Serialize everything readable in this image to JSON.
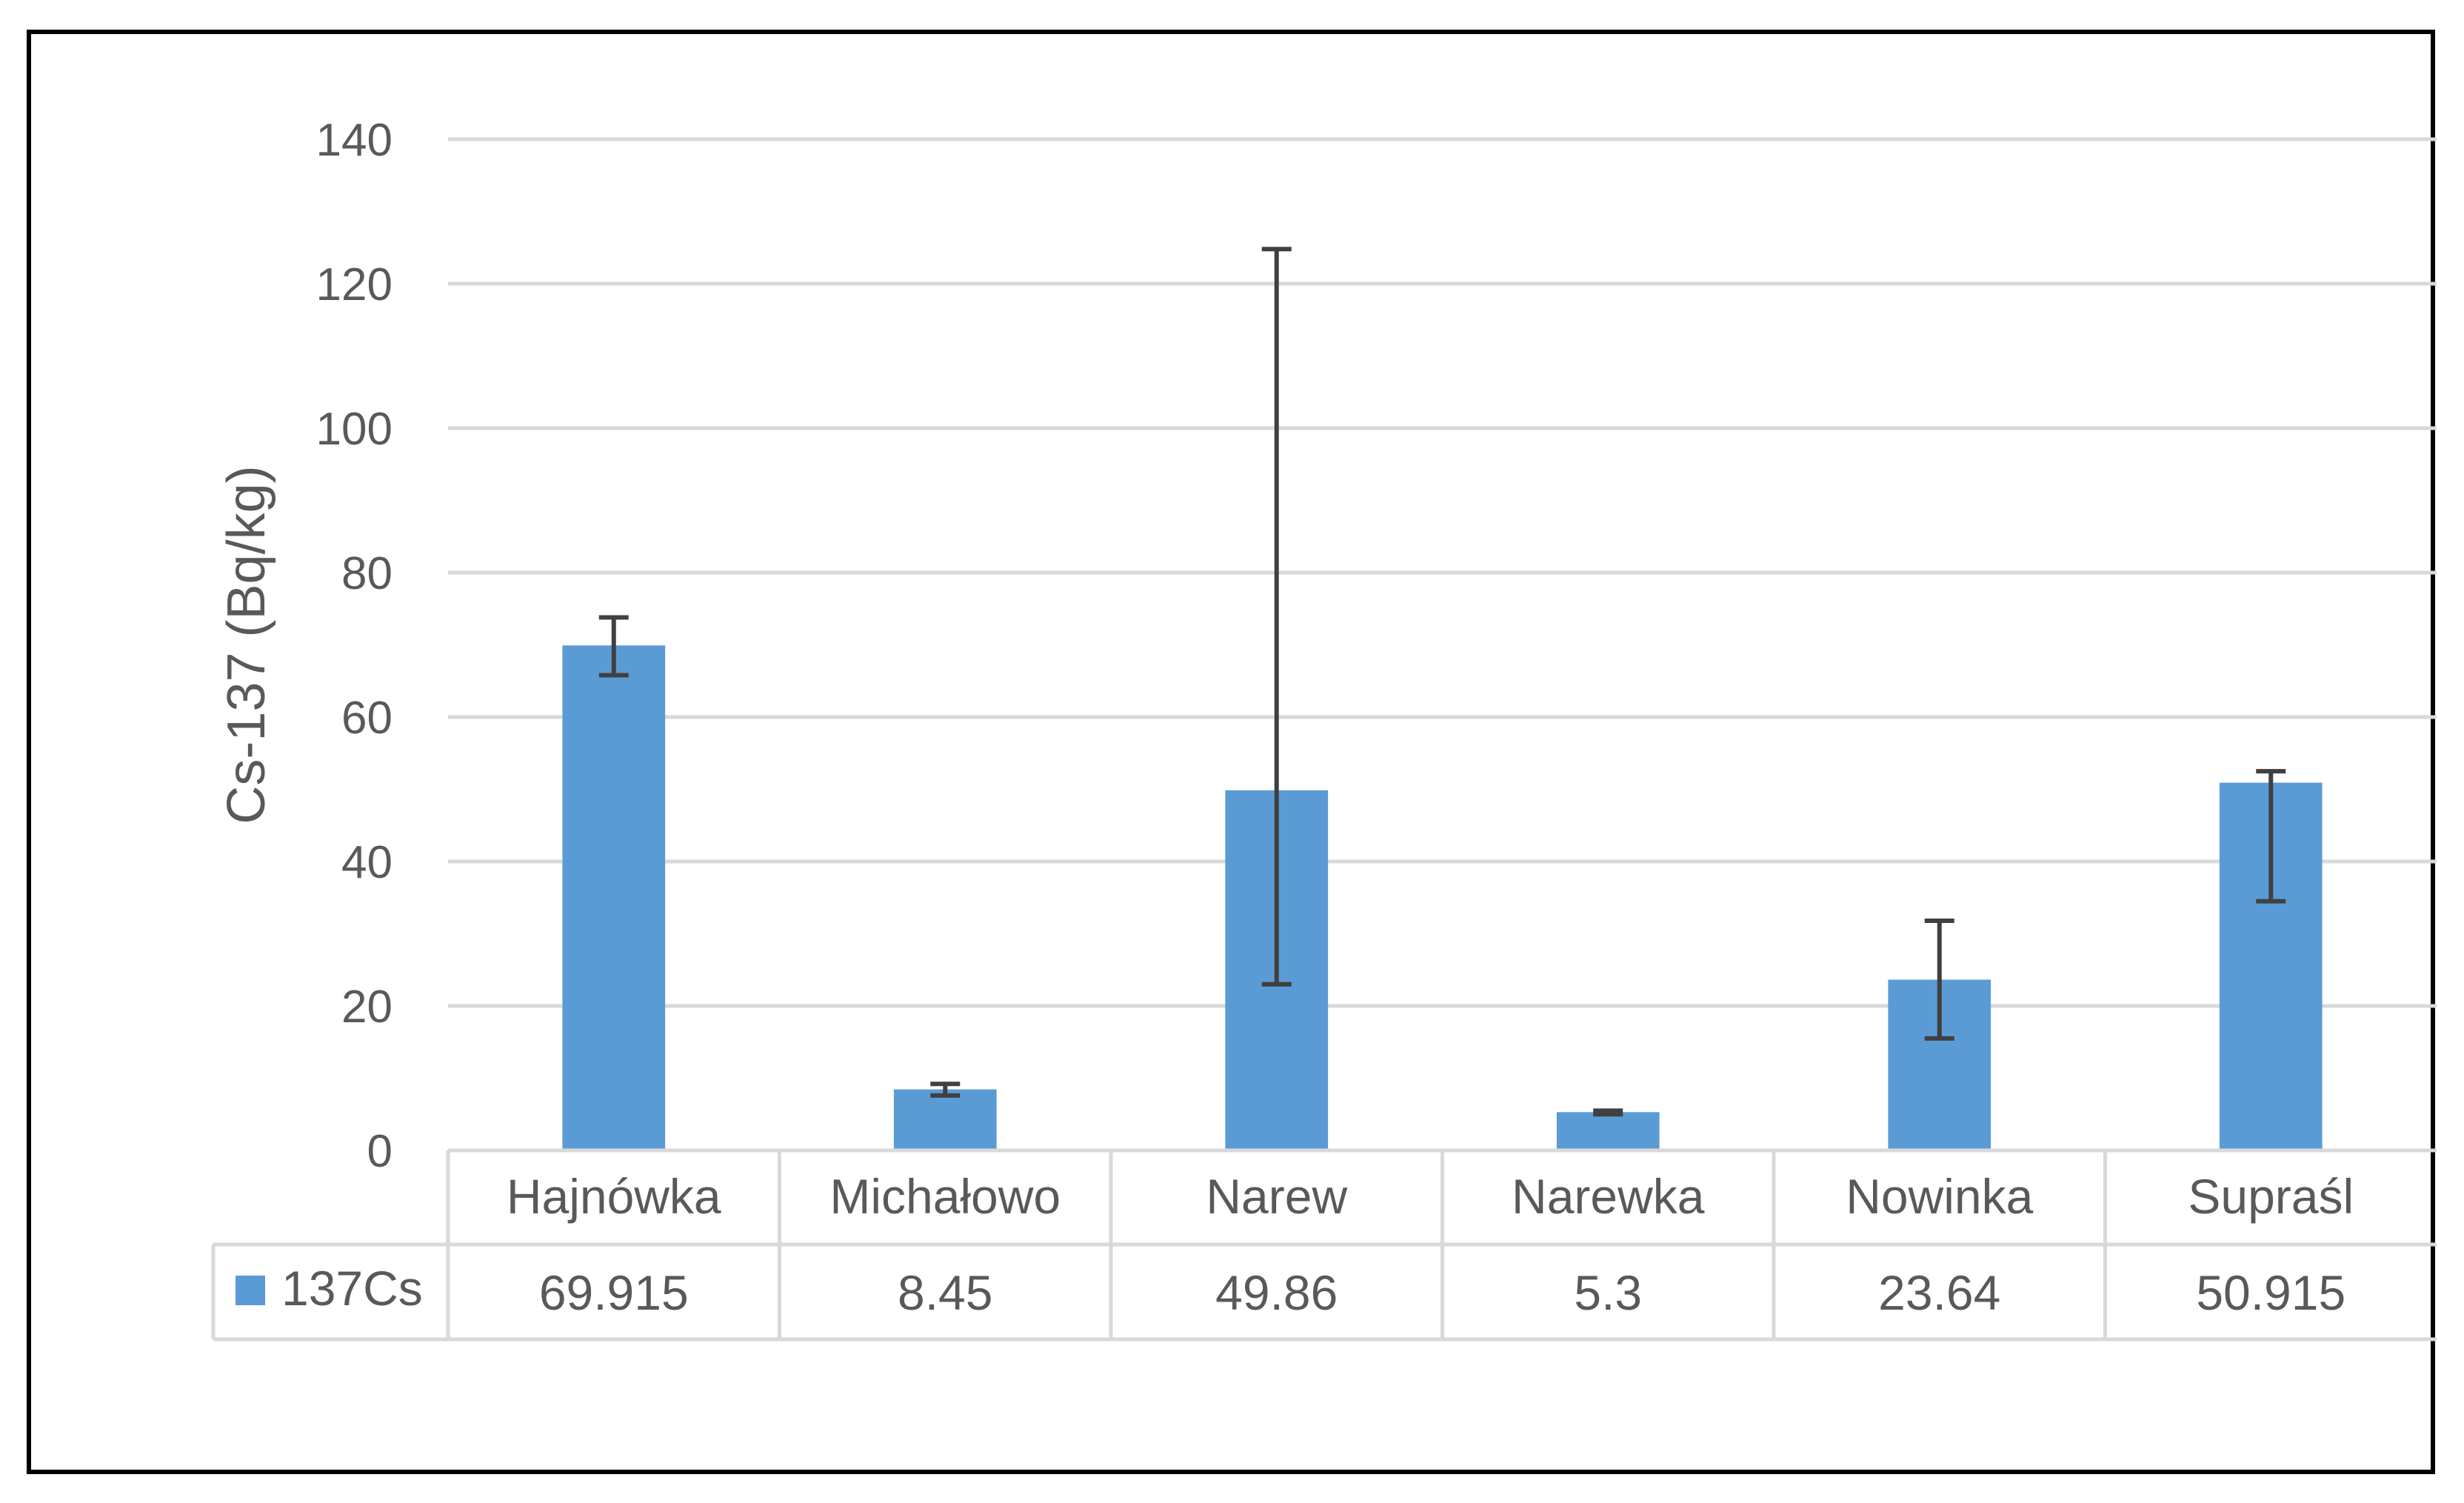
{
  "chart_data": {
    "type": "bar",
    "categories": [
      "Hajnówka",
      "Michałowo",
      "Narew",
      "Narewka",
      "Nowinka",
      "Supraśl"
    ],
    "series": [
      {
        "name": "137Cs",
        "values": [
          69.915,
          8.45,
          49.86,
          5.3,
          23.64,
          50.915
        ],
        "error_low": [
          65.8,
          7.6,
          23.0,
          5.0,
          15.5,
          34.5
        ],
        "error_high": [
          73.8,
          9.2,
          124.8,
          5.5,
          31.8,
          52.5
        ],
        "color": "#5b9bd5"
      }
    ],
    "ylabel": "Cs-137 (Bq/kg)",
    "xlabel": "",
    "ylim": [
      0,
      140
    ],
    "yticks": [
      0,
      20,
      40,
      60,
      80,
      100,
      120,
      140
    ],
    "grid": true,
    "data_table": true,
    "table_values": [
      "69.915",
      "8.45",
      "49.86",
      "5.3",
      "23.64",
      "50.915"
    ]
  }
}
